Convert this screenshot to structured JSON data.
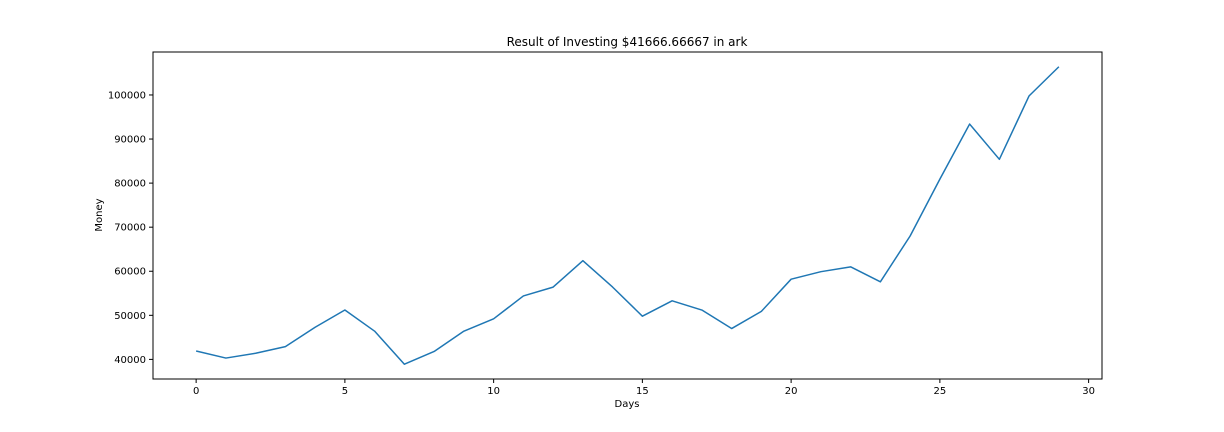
{
  "chart_data": {
    "type": "line",
    "title": "Result of Investing $41666.66667 in ark",
    "xlabel": "Days",
    "ylabel": "Money",
    "xlim": [
      -1.45,
      30.45
    ],
    "ylim": [
      35550,
      109750
    ],
    "xticks": [
      0,
      5,
      10,
      15,
      20,
      25,
      30
    ],
    "yticks": [
      40000,
      50000,
      60000,
      70000,
      80000,
      90000,
      100000
    ],
    "grid": false,
    "colors": {
      "line": "#1f77b4",
      "axes": "#000000"
    },
    "series": [
      {
        "x": [
          0,
          1,
          2,
          3,
          4,
          5,
          6,
          7,
          8,
          9,
          10,
          11,
          12,
          13,
          14,
          15,
          16,
          17,
          18,
          19,
          20,
          21,
          22,
          23,
          24,
          25,
          26,
          27,
          28,
          29
        ],
        "values": [
          41900,
          40300,
          41400,
          42900,
          47300,
          51200,
          46400,
          38900,
          41800,
          46400,
          49200,
          54400,
          56400,
          62400,
          56400,
          49800,
          53300,
          51200,
          47000,
          50900,
          58200,
          59900,
          61000,
          57600,
          68000,
          80900,
          93400,
          85400,
          99800,
          106400
        ]
      }
    ]
  }
}
